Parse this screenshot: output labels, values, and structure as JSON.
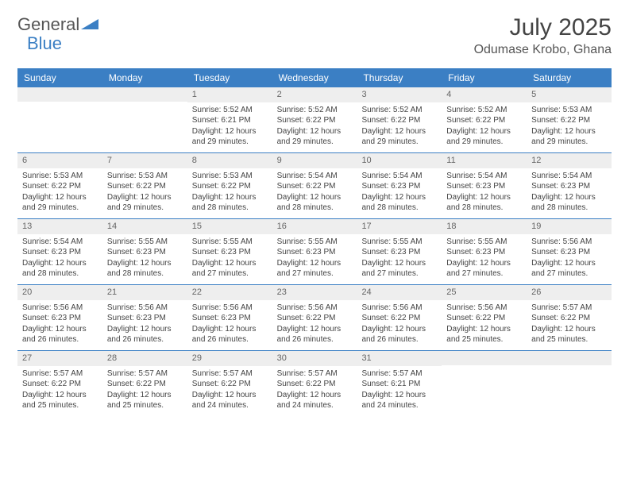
{
  "logo": {
    "general": "General",
    "blue": "Blue"
  },
  "title": "July 2025",
  "location": "Odumase Krobo, Ghana",
  "colors": {
    "header_bg": "#3b7fc4",
    "header_text": "#ffffff",
    "daynum_bg": "#eeeeee",
    "border": "#3b7fc4",
    "body_text": "#444444"
  },
  "day_names": [
    "Sunday",
    "Monday",
    "Tuesday",
    "Wednesday",
    "Thursday",
    "Friday",
    "Saturday"
  ],
  "weeks": [
    [
      null,
      null,
      {
        "n": "1",
        "sr": "5:52 AM",
        "ss": "6:21 PM",
        "dl": "12 hours and 29 minutes."
      },
      {
        "n": "2",
        "sr": "5:52 AM",
        "ss": "6:22 PM",
        "dl": "12 hours and 29 minutes."
      },
      {
        "n": "3",
        "sr": "5:52 AM",
        "ss": "6:22 PM",
        "dl": "12 hours and 29 minutes."
      },
      {
        "n": "4",
        "sr": "5:52 AM",
        "ss": "6:22 PM",
        "dl": "12 hours and 29 minutes."
      },
      {
        "n": "5",
        "sr": "5:53 AM",
        "ss": "6:22 PM",
        "dl": "12 hours and 29 minutes."
      }
    ],
    [
      {
        "n": "6",
        "sr": "5:53 AM",
        "ss": "6:22 PM",
        "dl": "12 hours and 29 minutes."
      },
      {
        "n": "7",
        "sr": "5:53 AM",
        "ss": "6:22 PM",
        "dl": "12 hours and 29 minutes."
      },
      {
        "n": "8",
        "sr": "5:53 AM",
        "ss": "6:22 PM",
        "dl": "12 hours and 28 minutes."
      },
      {
        "n": "9",
        "sr": "5:54 AM",
        "ss": "6:22 PM",
        "dl": "12 hours and 28 minutes."
      },
      {
        "n": "10",
        "sr": "5:54 AM",
        "ss": "6:23 PM",
        "dl": "12 hours and 28 minutes."
      },
      {
        "n": "11",
        "sr": "5:54 AM",
        "ss": "6:23 PM",
        "dl": "12 hours and 28 minutes."
      },
      {
        "n": "12",
        "sr": "5:54 AM",
        "ss": "6:23 PM",
        "dl": "12 hours and 28 minutes."
      }
    ],
    [
      {
        "n": "13",
        "sr": "5:54 AM",
        "ss": "6:23 PM",
        "dl": "12 hours and 28 minutes."
      },
      {
        "n": "14",
        "sr": "5:55 AM",
        "ss": "6:23 PM",
        "dl": "12 hours and 28 minutes."
      },
      {
        "n": "15",
        "sr": "5:55 AM",
        "ss": "6:23 PM",
        "dl": "12 hours and 27 minutes."
      },
      {
        "n": "16",
        "sr": "5:55 AM",
        "ss": "6:23 PM",
        "dl": "12 hours and 27 minutes."
      },
      {
        "n": "17",
        "sr": "5:55 AM",
        "ss": "6:23 PM",
        "dl": "12 hours and 27 minutes."
      },
      {
        "n": "18",
        "sr": "5:55 AM",
        "ss": "6:23 PM",
        "dl": "12 hours and 27 minutes."
      },
      {
        "n": "19",
        "sr": "5:56 AM",
        "ss": "6:23 PM",
        "dl": "12 hours and 27 minutes."
      }
    ],
    [
      {
        "n": "20",
        "sr": "5:56 AM",
        "ss": "6:23 PM",
        "dl": "12 hours and 26 minutes."
      },
      {
        "n": "21",
        "sr": "5:56 AM",
        "ss": "6:23 PM",
        "dl": "12 hours and 26 minutes."
      },
      {
        "n": "22",
        "sr": "5:56 AM",
        "ss": "6:23 PM",
        "dl": "12 hours and 26 minutes."
      },
      {
        "n": "23",
        "sr": "5:56 AM",
        "ss": "6:22 PM",
        "dl": "12 hours and 26 minutes."
      },
      {
        "n": "24",
        "sr": "5:56 AM",
        "ss": "6:22 PM",
        "dl": "12 hours and 26 minutes."
      },
      {
        "n": "25",
        "sr": "5:56 AM",
        "ss": "6:22 PM",
        "dl": "12 hours and 25 minutes."
      },
      {
        "n": "26",
        "sr": "5:57 AM",
        "ss": "6:22 PM",
        "dl": "12 hours and 25 minutes."
      }
    ],
    [
      {
        "n": "27",
        "sr": "5:57 AM",
        "ss": "6:22 PM",
        "dl": "12 hours and 25 minutes."
      },
      {
        "n": "28",
        "sr": "5:57 AM",
        "ss": "6:22 PM",
        "dl": "12 hours and 25 minutes."
      },
      {
        "n": "29",
        "sr": "5:57 AM",
        "ss": "6:22 PM",
        "dl": "12 hours and 24 minutes."
      },
      {
        "n": "30",
        "sr": "5:57 AM",
        "ss": "6:22 PM",
        "dl": "12 hours and 24 minutes."
      },
      {
        "n": "31",
        "sr": "5:57 AM",
        "ss": "6:21 PM",
        "dl": "12 hours and 24 minutes."
      },
      null,
      null
    ]
  ],
  "labels": {
    "sunrise": "Sunrise:",
    "sunset": "Sunset:",
    "daylight": "Daylight:"
  }
}
